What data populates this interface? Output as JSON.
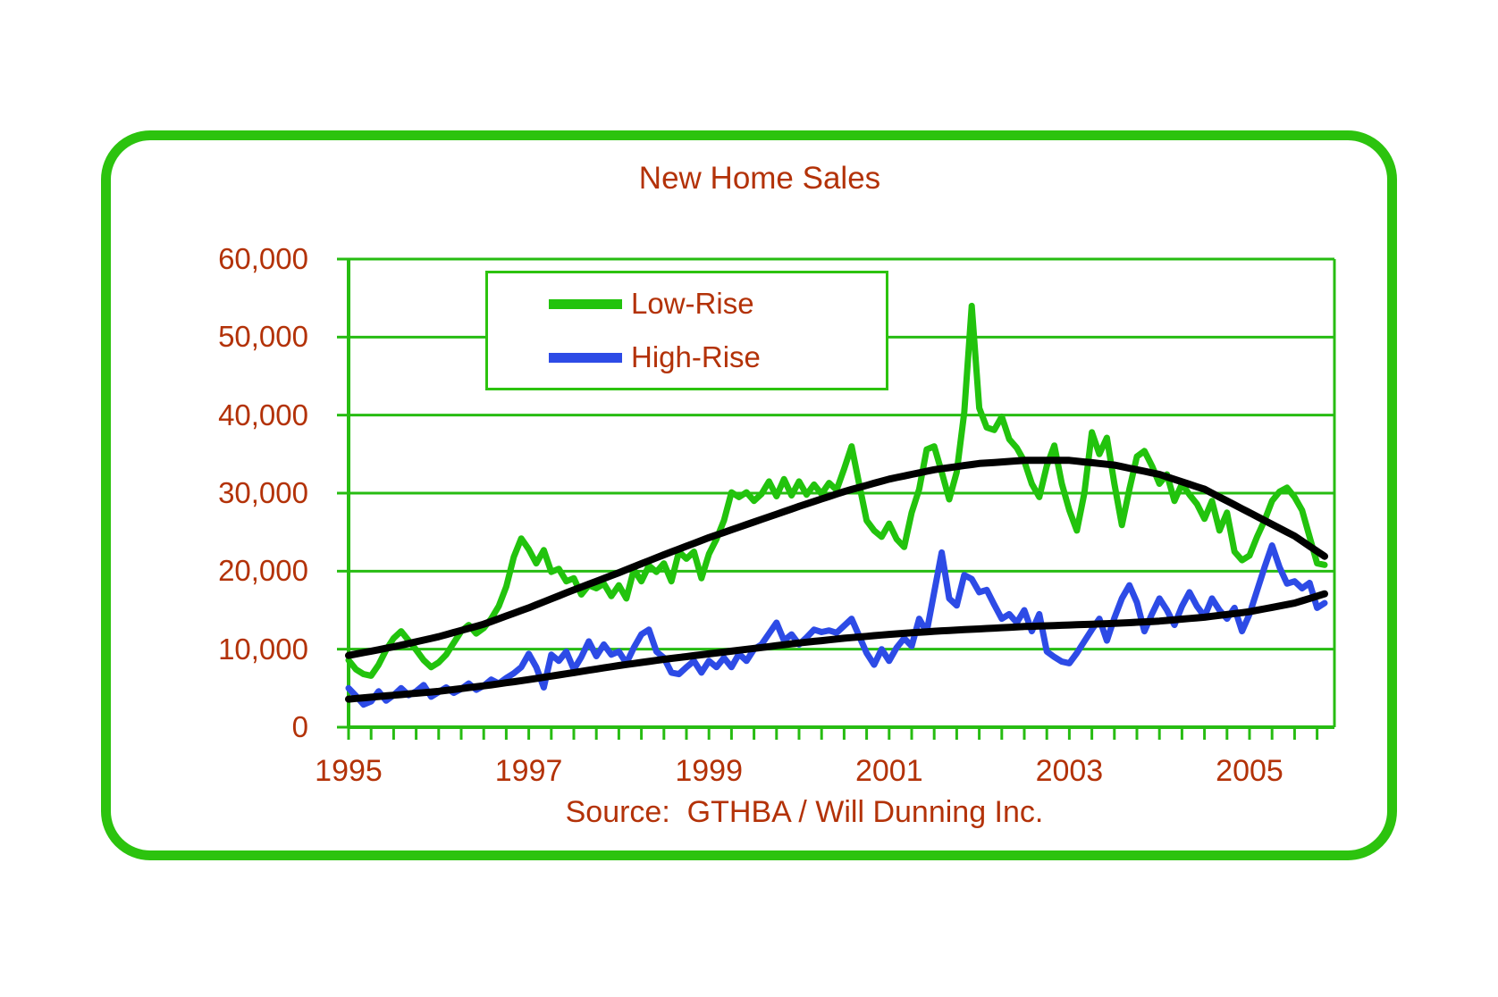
{
  "page": {
    "background": "#FFFFFF"
  },
  "colors": {
    "frame_green": "#2CC30E",
    "grid_green": "#27BC12",
    "series_green": "#22C30D",
    "series_blue": "#2D4BE6",
    "trend_black": "#000000",
    "label_red": "#B33208"
  },
  "chart_data": {
    "type": "line",
    "title": "New Home Sales",
    "source": "Source:  GTHBA / Will Dunning Inc.",
    "x_start": "1995-01",
    "x_end": "2005-11",
    "x_frequency": "monthly",
    "n_points": 131,
    "grid": true,
    "legend_position": "top-left-inside",
    "ylim": [
      0,
      60000
    ],
    "y_axis": {
      "ticks": [
        {
          "value": 0,
          "label": "0"
        },
        {
          "value": 10000,
          "label": "10,000"
        },
        {
          "value": 20000,
          "label": "20,000"
        },
        {
          "value": 30000,
          "label": "30,000"
        },
        {
          "value": 40000,
          "label": "40,000"
        },
        {
          "value": 50000,
          "label": "50,000"
        },
        {
          "value": 60000,
          "label": "60,000"
        }
      ]
    },
    "x_axis": {
      "minor_tick_every_months": 3,
      "ticks": [
        {
          "year": 1995,
          "label": "1995"
        },
        {
          "year": 1997,
          "label": "1997"
        },
        {
          "year": 1999,
          "label": "1999"
        },
        {
          "year": 2001,
          "label": "2001"
        },
        {
          "year": 2003,
          "label": "2003"
        },
        {
          "year": 2005,
          "label": "2005"
        }
      ]
    },
    "series": [
      {
        "name": "Low-Rise",
        "role": "data",
        "color": "#22C30D",
        "line_width": 7,
        "values": [
          8600,
          7400,
          6800,
          6600,
          8000,
          9900,
          11400,
          12300,
          11100,
          9900,
          8600,
          7700,
          8300,
          9300,
          10800,
          12300,
          13100,
          12000,
          12700,
          13900,
          15500,
          18000,
          21800,
          24200,
          22800,
          21000,
          22700,
          19900,
          20300,
          18700,
          19100,
          17000,
          18200,
          17800,
          18400,
          16800,
          18200,
          16500,
          20200,
          18700,
          20700,
          19900,
          21000,
          18700,
          22500,
          21600,
          22500,
          19100,
          22200,
          24100,
          26500,
          30100,
          29500,
          30100,
          29000,
          29900,
          31500,
          29600,
          31800,
          29700,
          31500,
          29800,
          31100,
          29900,
          31300,
          30400,
          33100,
          36000,
          31200,
          26500,
          25200,
          24400,
          26100,
          24100,
          23100,
          27500,
          30500,
          35600,
          36000,
          32700,
          29200,
          32700,
          40300,
          54000,
          40900,
          38400,
          38100,
          39800,
          36900,
          35800,
          34100,
          31200,
          29500,
          33500,
          36100,
          31200,
          27800,
          25200,
          30000,
          37800,
          35000,
          37100,
          31200,
          25900,
          30500,
          34700,
          35400,
          33500,
          31200,
          32400,
          29000,
          31200,
          29800,
          28600,
          26700,
          29000,
          25200,
          27500,
          22500,
          21400,
          22000,
          24400,
          26500,
          29000,
          30200,
          30700,
          29500,
          27800,
          24400,
          21000,
          20800
        ]
      },
      {
        "name": "High-Rise",
        "role": "data",
        "color": "#2D4BE6",
        "line_width": 7,
        "values": [
          5000,
          4000,
          2900,
          3300,
          4600,
          3400,
          4100,
          5000,
          4100,
          4600,
          5400,
          3900,
          4500,
          5100,
          4400,
          4900,
          5600,
          4800,
          5300,
          6100,
          5600,
          6300,
          6900,
          7700,
          9400,
          7700,
          5100,
          9300,
          8500,
          9700,
          7400,
          9000,
          11000,
          9100,
          10600,
          9300,
          9700,
          8200,
          10200,
          11900,
          12500,
          9700,
          8900,
          7000,
          6800,
          7700,
          8500,
          7000,
          8500,
          7700,
          8900,
          7700,
          9400,
          8500,
          10000,
          10600,
          12000,
          13400,
          11100,
          11900,
          10600,
          11500,
          12500,
          12200,
          12400,
          12100,
          13000,
          13900,
          11700,
          9500,
          8000,
          10000,
          8500,
          10200,
          11400,
          10400,
          13900,
          12200,
          17300,
          22400,
          16500,
          15600,
          19500,
          19000,
          17300,
          17600,
          15700,
          13900,
          14500,
          13400,
          15000,
          12300,
          14500,
          9700,
          9000,
          8400,
          8200,
          9500,
          11000,
          12500,
          13900,
          11100,
          14000,
          16500,
          18200,
          16000,
          12300,
          14500,
          16500,
          15000,
          13100,
          15500,
          17300,
          15500,
          14200,
          16500,
          15000,
          13900,
          15300,
          12300,
          14500,
          17500,
          20500,
          23300,
          20500,
          18400,
          18700,
          17800,
          18500,
          15300,
          15900
        ]
      },
      {
        "name": "Low-Rise trend",
        "role": "trend",
        "color": "#000000",
        "line_width": 8,
        "values": [
          9200,
          9383,
          9567,
          9750,
          9933,
          10117,
          10300,
          10517,
          10733,
          10950,
          11167,
          11383,
          11600,
          11867,
          12133,
          12400,
          12667,
          12933,
          13200,
          13550,
          13900,
          14250,
          14600,
          14950,
          15300,
          15683,
          16067,
          16450,
          16833,
          17217,
          17600,
          17967,
          18333,
          18700,
          19067,
          19433,
          19800,
          20183,
          20567,
          20950,
          21333,
          21717,
          22100,
          22467,
          22833,
          23200,
          23567,
          23933,
          24300,
          24633,
          24967,
          25300,
          25633,
          25967,
          26300,
          26633,
          26967,
          27300,
          27633,
          27967,
          28300,
          28617,
          28933,
          29250,
          29567,
          29883,
          30200,
          30467,
          30733,
          31000,
          31267,
          31533,
          31800,
          32000,
          32200,
          32400,
          32600,
          32800,
          33000,
          33133,
          33267,
          33400,
          33533,
          33667,
          33800,
          33867,
          33933,
          34000,
          34067,
          34133,
          34200,
          34200,
          34200,
          34200,
          34200,
          34200,
          34200,
          34100,
          34000,
          33900,
          33800,
          33700,
          33600,
          33400,
          33200,
          33000,
          32800,
          32600,
          32400,
          32083,
          31767,
          31450,
          31133,
          30817,
          30500,
          30000,
          29500,
          29000,
          28500,
          28000,
          27500,
          27000,
          26500,
          26000,
          25500,
          25000,
          24500,
          23850,
          23200,
          22550,
          21900
        ]
      },
      {
        "name": "High-Rise trend",
        "role": "trend",
        "color": "#000000",
        "line_width": 8,
        "values": [
          3600,
          3683,
          3767,
          3850,
          3933,
          4017,
          4100,
          4183,
          4267,
          4350,
          4433,
          4517,
          4600,
          4717,
          4833,
          4950,
          5067,
          5183,
          5300,
          5433,
          5567,
          5700,
          5833,
          5967,
          6100,
          6250,
          6400,
          6550,
          6700,
          6850,
          7000,
          7150,
          7300,
          7450,
          7600,
          7750,
          7900,
          8033,
          8167,
          8300,
          8433,
          8567,
          8700,
          8817,
          8933,
          9050,
          9167,
          9283,
          9400,
          9517,
          9633,
          9750,
          9867,
          9983,
          10100,
          10217,
          10333,
          10450,
          10567,
          10683,
          10800,
          10900,
          11000,
          11100,
          11200,
          11300,
          11400,
          11483,
          11567,
          11650,
          11733,
          11817,
          11900,
          11967,
          12033,
          12100,
          12167,
          12233,
          12300,
          12350,
          12400,
          12450,
          12500,
          12550,
          12600,
          12650,
          12700,
          12750,
          12800,
          12850,
          12900,
          12933,
          12967,
          13000,
          13033,
          13067,
          13100,
          13133,
          13167,
          13200,
          13233,
          13267,
          13300,
          13350,
          13400,
          13450,
          13500,
          13550,
          13600,
          13683,
          13767,
          13850,
          13933,
          14017,
          14100,
          14217,
          14333,
          14450,
          14567,
          14683,
          14800,
          14983,
          15167,
          15350,
          15533,
          15717,
          15900,
          16200,
          16500,
          16800,
          17100
        ]
      }
    ],
    "legend": [
      {
        "label": "Low-Rise",
        "color": "#22C30D"
      },
      {
        "label": "High-Rise",
        "color": "#2D4BE6"
      }
    ]
  }
}
